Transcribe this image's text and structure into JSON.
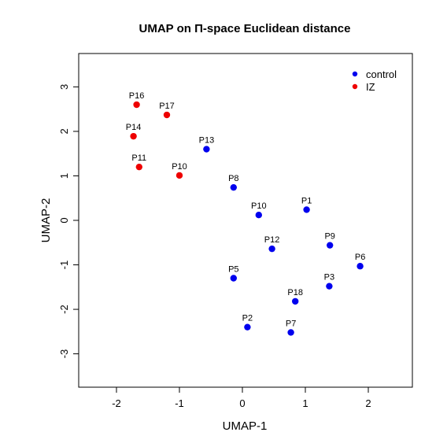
{
  "chart_data": {
    "type": "scatter",
    "title": "UMAP on Π-space Euclidean distance",
    "xlabel": "UMAP-1",
    "ylabel": "UMAP-2",
    "xlim": [
      -2.6,
      2.7
    ],
    "ylim": [
      -3.75,
      3.75
    ],
    "xticks": [
      -2,
      -1,
      0,
      1,
      2
    ],
    "yticks": [
      -3,
      -2,
      -1,
      0,
      1,
      2,
      3
    ],
    "grid": false,
    "legend_position": "top-right",
    "series": [
      {
        "name": "control",
        "color": "#0000ee",
        "points": [
          {
            "label": "P1",
            "x": 1.02,
            "y": 0.24
          },
          {
            "label": "P2",
            "x": 0.08,
            "y": -2.4
          },
          {
            "label": "P3",
            "x": 1.38,
            "y": -1.48
          },
          {
            "label": "P5",
            "x": -0.14,
            "y": -1.3
          },
          {
            "label": "P6",
            "x": 1.87,
            "y": -1.03
          },
          {
            "label": "P7",
            "x": 0.77,
            "y": -2.52
          },
          {
            "label": "P8",
            "x": -0.14,
            "y": 0.74
          },
          {
            "label": "P9",
            "x": 1.39,
            "y": -0.56
          },
          {
            "label": "P10",
            "x": 0.26,
            "y": 0.12
          },
          {
            "label": "P12",
            "x": 0.47,
            "y": -0.64
          },
          {
            "label": "P13",
            "x": -0.57,
            "y": 1.6
          },
          {
            "label": "P18",
            "x": 0.84,
            "y": -1.82
          }
        ]
      },
      {
        "name": "IZ",
        "color": "#ee0000",
        "points": [
          {
            "label": "P10",
            "x": -1.0,
            "y": 1.01
          },
          {
            "label": "P11",
            "x": -1.64,
            "y": 1.2
          },
          {
            "label": "P14",
            "x": -1.73,
            "y": 1.89
          },
          {
            "label": "P16",
            "x": -1.68,
            "y": 2.6
          },
          {
            "label": "P17",
            "x": -1.2,
            "y": 2.37
          }
        ]
      }
    ]
  }
}
